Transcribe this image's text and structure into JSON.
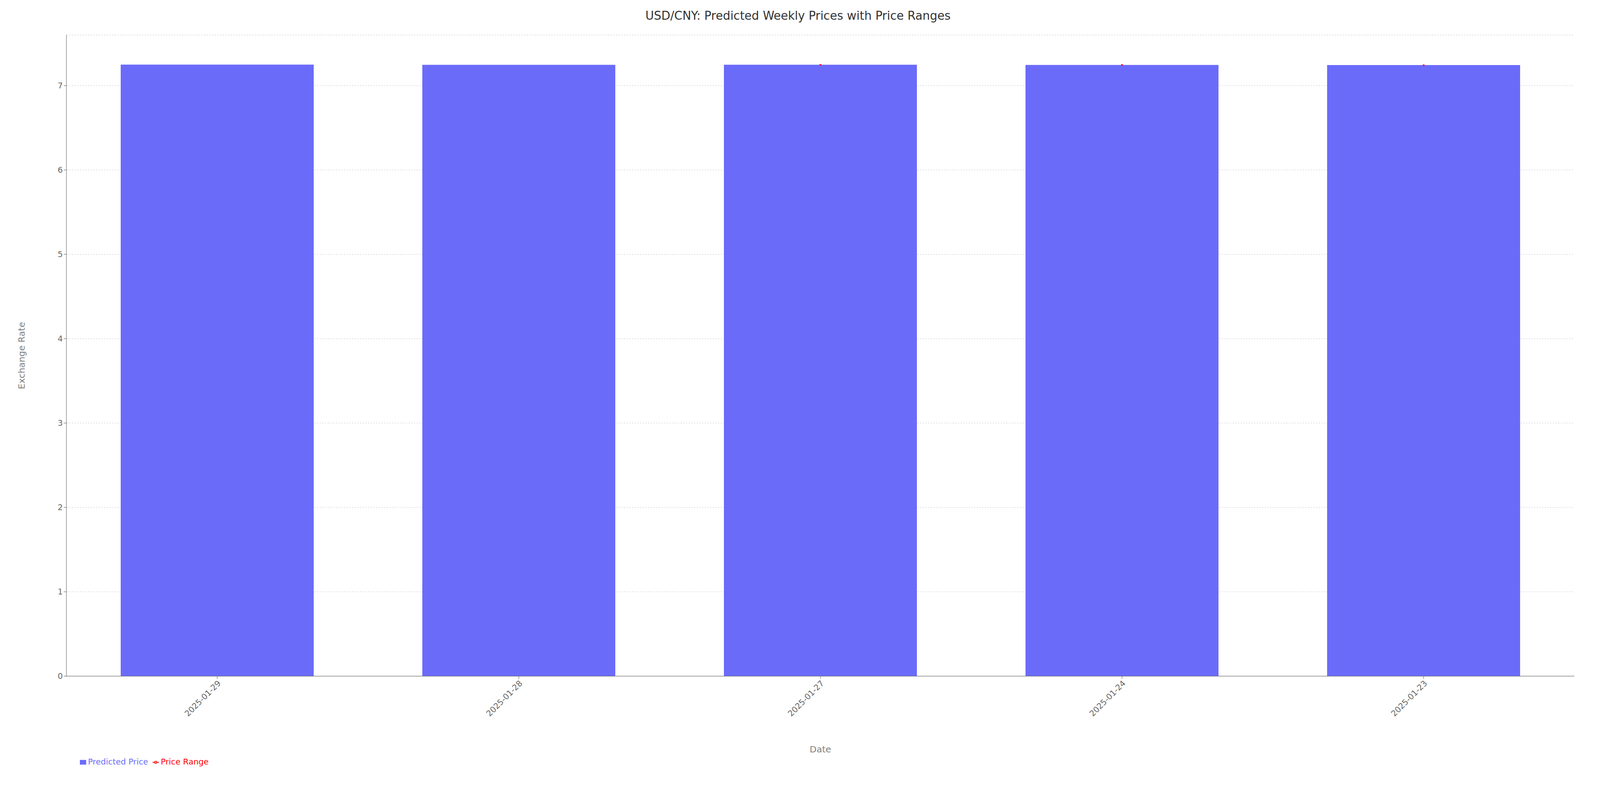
{
  "chart_data": {
    "type": "bar",
    "title": "USD/CNY: Predicted Weekly Prices with Price Ranges",
    "xlabel": "Date",
    "ylabel": "Exchange Rate",
    "categories": [
      "2025-01-29",
      "2025-01-28",
      "2025-01-27",
      "2025-01-24",
      "2025-01-23"
    ],
    "series": [
      {
        "name": "Predicted Price",
        "color": "#6b6bfa",
        "values": [
          7.2488,
          7.2461,
          7.2478,
          7.2456,
          7.2432
        ]
      }
    ],
    "price_range": {
      "name": "Price Range",
      "color": "red",
      "low": [
        null,
        null,
        7.2408,
        7.2386,
        7.2362
      ],
      "high": [
        null,
        null,
        7.2548,
        7.2526,
        7.2502
      ]
    },
    "ylim": [
      0,
      7.6
    ],
    "yticks": [
      0,
      1,
      2,
      3,
      4,
      5,
      6,
      7
    ],
    "grid": true,
    "legend": "lower left"
  }
}
